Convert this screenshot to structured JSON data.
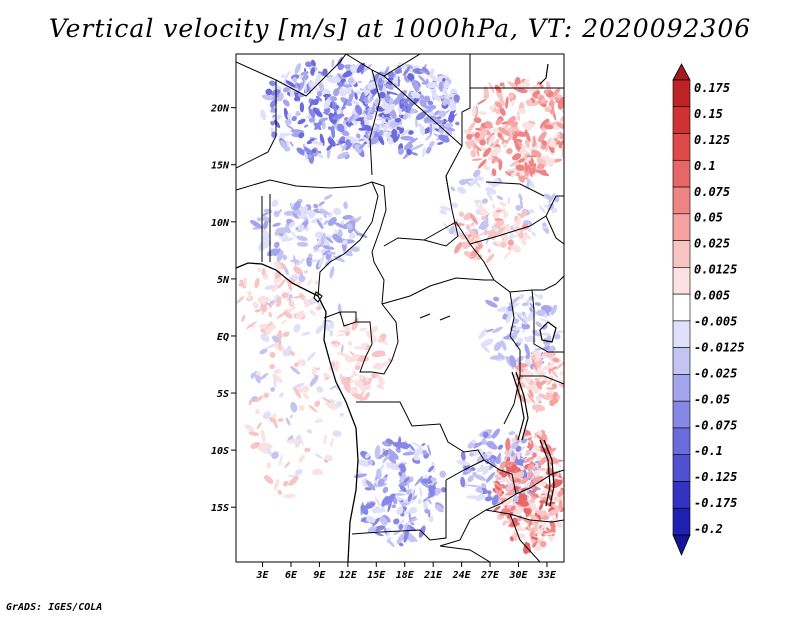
{
  "chart_data": {
    "type": "heatmap",
    "title": "Vertical velocity [m/s] at 1000hPa, VT: 2020092306",
    "variable": "Vertical velocity",
    "units": "m/s",
    "level": "1000hPa",
    "valid_time": "2020092306",
    "xlabel": "",
    "ylabel": "",
    "x_ticks": [
      "3E",
      "6E",
      "9E",
      "12E",
      "15E",
      "18E",
      "21E",
      "24E",
      "27E",
      "30E",
      "33E"
    ],
    "x_tick_values": [
      3,
      6,
      9,
      12,
      15,
      18,
      21,
      24,
      27,
      30,
      33
    ],
    "y_ticks": [
      "20N",
      "15N",
      "10N",
      "5N",
      "EQ",
      "5S",
      "10S",
      "15S"
    ],
    "y_tick_values": [
      20,
      15,
      10,
      5,
      0,
      -5,
      -10,
      -15
    ],
    "xlim": [
      0.2,
      34.8
    ],
    "ylim": [
      -19.8,
      24.7
    ],
    "colorbar": {
      "levels": [
        "0.175",
        "0.15",
        "0.125",
        "0.1",
        "0.075",
        "0.05",
        "0.025",
        "0.0125",
        "0.005",
        "-0.005",
        "-0.0125",
        "-0.025",
        "-0.05",
        "-0.075",
        "-0.1",
        "-0.125",
        "-0.175",
        "-0.2"
      ],
      "colors": [
        "#a51a1f",
        "#bd2226",
        "#d03133",
        "#de4a48",
        "#e76766",
        "#ee8584",
        "#f4a3a2",
        "#f8c4c4",
        "#fbe1e1",
        "#ffffff",
        "#e0e0fa",
        "#c4c4f3",
        "#a5a5ed",
        "#8787e6",
        "#6b6bde",
        "#5050d2",
        "#3333c2",
        "#2020b0",
        "#15159a"
      ]
    },
    "note": "Field rendered as scattered speckle: blue (negative) concentrated over Sahara/Chad and Angola highlands; red (positive) over Sudan/East Africa and Zambia–Malawi region."
  },
  "credit": "GrADS: IGES/COLA"
}
